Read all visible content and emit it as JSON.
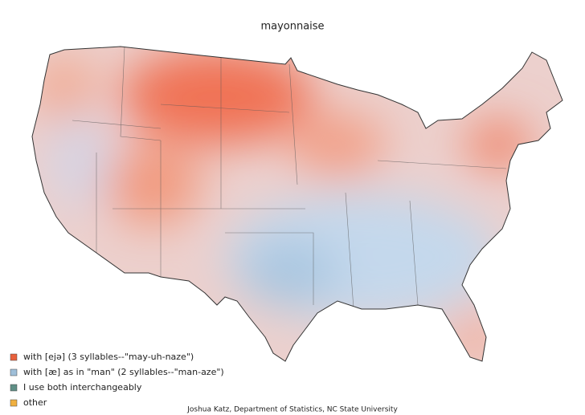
{
  "title": "mayonnaise",
  "legend": [
    {
      "label": "with [ejə] (3 syllables--\"may-uh-naze\")",
      "color": "#e8603c"
    },
    {
      "label": "with [æ] as in \"man\" (2 syllables--\"man-aze\")",
      "color": "#9fbfd9"
    },
    {
      "label": "I use both interchangeably",
      "color": "#5f8f86"
    },
    {
      "label": "other",
      "color": "#f0b040"
    }
  ],
  "credit": "Joshua Katz, Department of Statistics, NC State University"
}
